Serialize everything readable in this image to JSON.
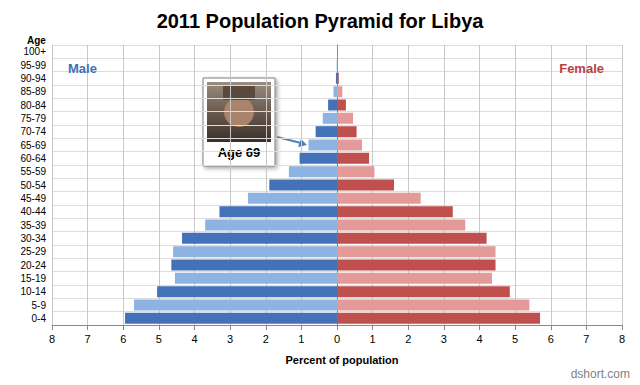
{
  "chart_data": {
    "type": "bar",
    "orientation": "horizontal",
    "title": "2011 Population Pyramid for Libya",
    "xlabel": "Percent of population",
    "ylabel": "Age",
    "categories": [
      "0-4",
      "5-9",
      "10-14",
      "15-19",
      "20-24",
      "25-29",
      "30-34",
      "35-39",
      "40-44",
      "45-49",
      "50-54",
      "55-59",
      "60-64",
      "65-69",
      "70-74",
      "75-79",
      "80-84",
      "85-89",
      "90-94",
      "95-99",
      "100+"
    ],
    "series": [
      {
        "name": "Male",
        "color": "#3f6fb5",
        "colors": [
          "#4472b8",
          "#8db3e2",
          "#4472b8",
          "#8db3e2",
          "#4472b8",
          "#8db3e2",
          "#4472b8",
          "#8db3e2",
          "#4472b8",
          "#8db3e2",
          "#4472b8",
          "#8db3e2",
          "#4472b8",
          "#8db3e2",
          "#4472b8",
          "#8db3e2",
          "#4472b8",
          "#8db3e2",
          "#4472b8",
          "#8db3e2",
          "#4472b8"
        ],
        "values": [
          5.95,
          5.7,
          5.05,
          4.55,
          4.65,
          4.6,
          4.35,
          3.7,
          3.3,
          2.5,
          1.9,
          1.35,
          1.05,
          0.8,
          0.6,
          0.4,
          0.25,
          0.1,
          0.03,
          0.01,
          0
        ]
      },
      {
        "name": "Female",
        "color": "#b8423f",
        "colors": [
          "#c0504d",
          "#e39a98",
          "#c0504d",
          "#e39a98",
          "#c0504d",
          "#e39a98",
          "#c0504d",
          "#e39a98",
          "#c0504d",
          "#e39a98",
          "#c0504d",
          "#e39a98",
          "#c0504d",
          "#e39a98",
          "#c0504d",
          "#e39a98",
          "#c0504d",
          "#e39a98",
          "#c0504d",
          "#e39a98",
          "#c0504d"
        ],
        "values": [
          5.7,
          5.4,
          4.85,
          4.35,
          4.45,
          4.45,
          4.2,
          3.6,
          3.25,
          2.35,
          1.6,
          1.05,
          0.9,
          0.7,
          0.55,
          0.45,
          0.25,
          0.15,
          0.05,
          0.01,
          0
        ]
      }
    ],
    "xlim": [
      0,
      8
    ],
    "xticks": [
      0,
      1,
      2,
      3,
      4,
      5,
      6,
      7,
      8
    ],
    "grid": true,
    "annotations": [
      {
        "text": "Age 69"
      }
    ],
    "source": "dshort.com"
  }
}
